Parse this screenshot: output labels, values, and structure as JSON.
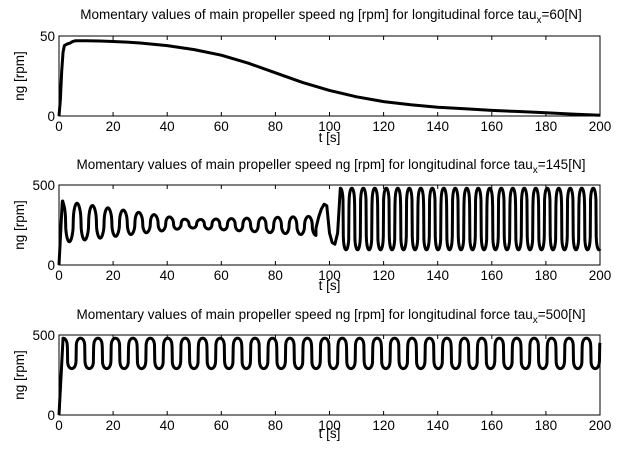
{
  "chart_data": [
    {
      "type": "line",
      "title": "Momentary values of main propeller speed ng [rpm] for longitudinal force tau",
      "title_subscript": "x",
      "title_suffix": "=60[N]",
      "xlabel": "t [s]",
      "ylabel": "ng [rpm]",
      "xlim": [
        0,
        200
      ],
      "ylim": [
        0,
        50
      ],
      "xticks": [
        0,
        20,
        40,
        60,
        80,
        100,
        120,
        140,
        160,
        180,
        200
      ],
      "yticks": [
        0,
        50
      ],
      "grid": false,
      "line_color": "#000000",
      "series": [
        {
          "x": [
            0,
            0.5,
            1,
            1.5,
            2,
            3,
            4,
            5,
            6,
            8,
            10,
            15,
            20,
            25,
            30,
            40,
            50,
            60,
            70,
            80,
            90,
            100,
            110,
            120,
            130,
            140,
            150,
            160,
            170,
            180,
            190,
            200
          ],
          "values": [
            0,
            10,
            28,
            40,
            44,
            45,
            45.5,
            46.5,
            47,
            47,
            47,
            46.9,
            46.6,
            46.2,
            45.6,
            44,
            41.5,
            38,
            33,
            27,
            21,
            16,
            12,
            9,
            7,
            5.5,
            4.5,
            3.5,
            2.8,
            2,
            1.2,
            0.5
          ]
        }
      ]
    },
    {
      "type": "line",
      "title": "Momentary values of main propeller speed ng [rpm] for longitudinal force tau",
      "title_subscript": "x",
      "title_suffix": "=145[N]",
      "xlabel": "t [s]",
      "ylabel": "ng [rpm]",
      "xlim": [
        0,
        200
      ],
      "ylim": [
        0,
        500
      ],
      "xticks": [
        0,
        20,
        40,
        60,
        80,
        100,
        120,
        140,
        160,
        180,
        200
      ],
      "yticks": [
        0,
        500
      ],
      "grid": false,
      "line_color": "#000000",
      "oscillation": {
        "phase1": {
          "t_start": 1,
          "t_end": 95,
          "period": 5.7,
          "mean_start": 270,
          "mean_end": 245,
          "amp_start": 130,
          "amp_mid": 25,
          "amp_end": 60
        },
        "phase2": {
          "t_start": 95,
          "t_end": 104,
          "low": 130,
          "high": 380
        },
        "phase3": {
          "t_start": 104,
          "t_end": 200,
          "period": 4.25,
          "low": 95,
          "high": 480
        }
      },
      "series": [
        {
          "x": [],
          "values": []
        }
      ]
    },
    {
      "type": "line",
      "title": "Momentary values of main propeller speed ng [rpm] for longitudinal force tau",
      "title_subscript": "x",
      "title_suffix": "=500[N]",
      "xlabel": "t [s]",
      "ylabel": "ng [rpm]",
      "xlim": [
        0,
        200
      ],
      "ylim": [
        0,
        500
      ],
      "xticks": [
        0,
        20,
        40,
        60,
        80,
        100,
        120,
        140,
        160,
        180,
        200
      ],
      "yticks": [
        0,
        500
      ],
      "grid": false,
      "line_color": "#000000",
      "oscillation": {
        "phase1": {
          "t_start": 1.5,
          "t_end": 200,
          "period": 6.45,
          "low": 290,
          "high": 480
        }
      },
      "series": [
        {
          "x": [],
          "values": []
        }
      ]
    }
  ]
}
